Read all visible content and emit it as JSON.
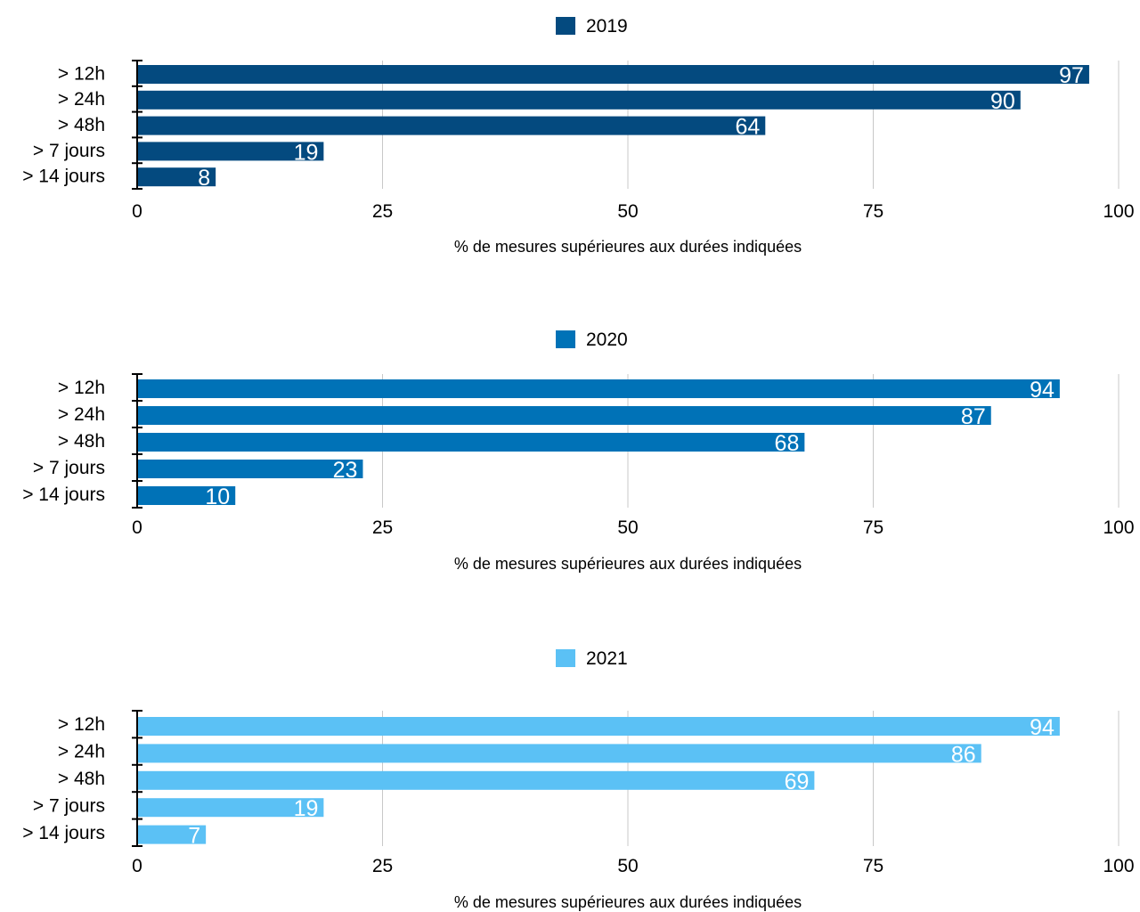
{
  "chart_data": [
    {
      "type": "bar",
      "orientation": "horizontal",
      "categories": [
        "> 12h",
        "> 24h",
        "> 48h",
        "> 7 jours",
        "> 14 jours"
      ],
      "series": [
        {
          "name": "2019",
          "values": [
            97,
            90,
            64,
            19,
            8
          ],
          "color": "#044a7f"
        }
      ],
      "xlabel": "% de mesures supérieures aux durées indiquées",
      "xlim": [
        0,
        100
      ],
      "xticks": [
        "0",
        "25",
        "50",
        "75",
        "100"
      ],
      "grid": "vertical",
      "legend_position": "top"
    },
    {
      "type": "bar",
      "orientation": "horizontal",
      "categories": [
        "> 12h",
        "> 24h",
        "> 48h",
        "> 7 jours",
        "> 14 jours"
      ],
      "series": [
        {
          "name": "2020",
          "values": [
            94,
            87,
            68,
            23,
            10
          ],
          "color": "#0072b7"
        }
      ],
      "xlabel": "% de mesures supérieures aux durées indiquées",
      "xlim": [
        0,
        100
      ],
      "xticks": [
        "0",
        "25",
        "50",
        "75",
        "100"
      ],
      "grid": "vertical",
      "legend_position": "top"
    },
    {
      "type": "bar",
      "orientation": "horizontal",
      "categories": [
        "> 12h",
        "> 24h",
        "> 48h",
        "> 7 jours",
        "> 14 jours"
      ],
      "series": [
        {
          "name": "2021",
          "values": [
            94,
            86,
            69,
            19,
            7
          ],
          "color": "#5bc1f5"
        }
      ],
      "xlabel": "% de mesures supérieures aux durées indiquées",
      "xlim": [
        0,
        100
      ],
      "xticks": [
        "0",
        "25",
        "50",
        "75",
        "100"
      ],
      "grid": "vertical",
      "legend_position": "top"
    }
  ]
}
